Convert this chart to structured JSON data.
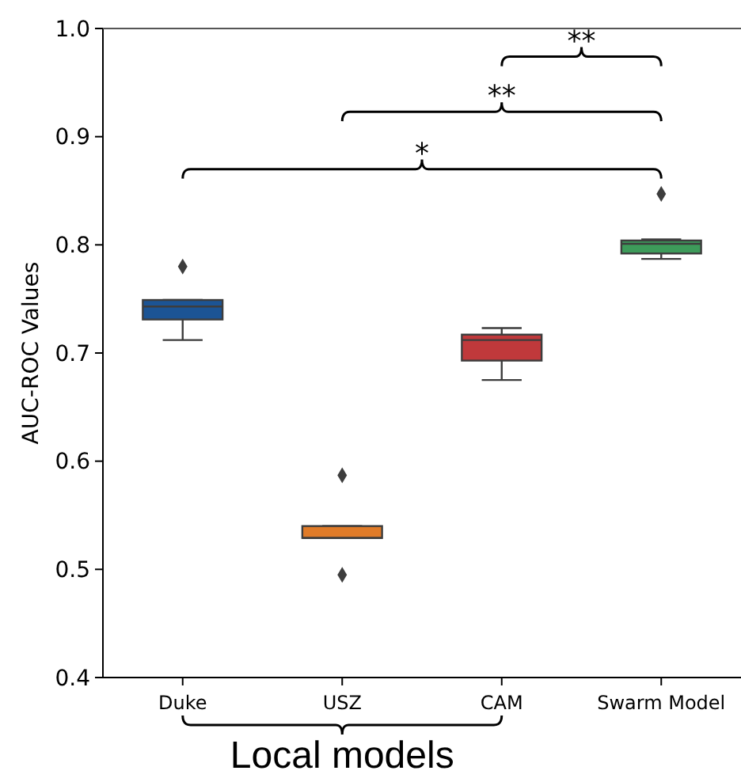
{
  "chart_data": {
    "type": "box",
    "ylabel": "AUC-ROC Values",
    "categories": [
      "Duke",
      "USZ",
      "CAM",
      "Swarm Model"
    ],
    "colors": [
      "#1c5494",
      "#e07b28",
      "#c0393b",
      "#3d9b5a"
    ],
    "boxes": [
      {
        "low": 0.712,
        "q1": 0.731,
        "median": 0.743,
        "q3": 0.749,
        "high": 0.749,
        "outliers": [
          0.78
        ]
      },
      {
        "low": 0.529,
        "q1": 0.529,
        "median": 0.529,
        "q3": 0.54,
        "high": 0.54,
        "outliers": [
          0.587,
          0.495
        ]
      },
      {
        "low": 0.675,
        "q1": 0.693,
        "median": 0.712,
        "q3": 0.717,
        "high": 0.723
      },
      {
        "low": 0.787,
        "q1": 0.792,
        "median": 0.801,
        "q3": 0.804,
        "high": 0.805,
        "outliers": [
          0.847
        ]
      }
    ],
    "ylim": [
      0.4,
      1.0
    ],
    "yticks": [
      0.4,
      0.5,
      0.6,
      0.7,
      0.8,
      0.9,
      {
        "value": 1.0,
        "label": "1.0"
      }
    ],
    "marker": "diamond",
    "grid": false,
    "annotations": [
      "*",
      "**",
      "**",
      "Local models"
    ]
  }
}
